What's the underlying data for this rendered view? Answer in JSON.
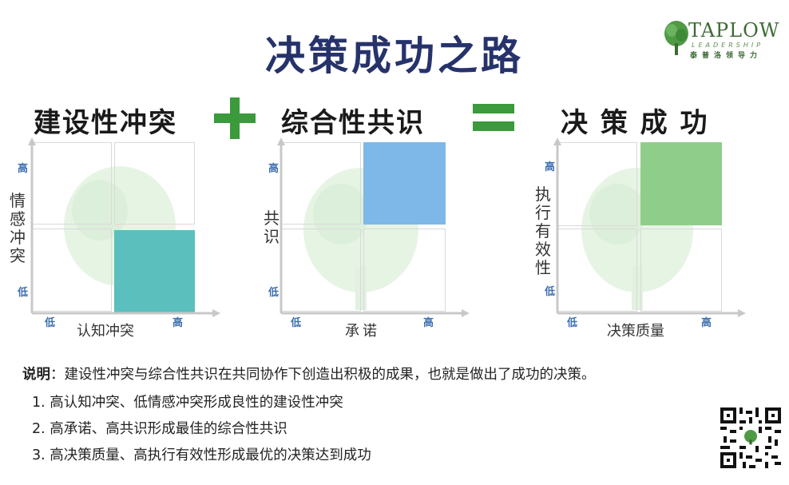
{
  "title": "决策成功之路",
  "logo": {
    "name": "TAPLOW",
    "sub": "LEADERSHIP",
    "cn": "泰普洛领导力"
  },
  "operators": {
    "plus": "+",
    "equals": "="
  },
  "panels": [
    {
      "heading": "建设性冲突",
      "y_label": "情感冲突",
      "x_label": "认知冲突",
      "y_high": "高",
      "y_low": "低",
      "x_low": "低",
      "x_high": "高",
      "highlight": "bottom-right",
      "highlight_color": "#5bbfbe"
    },
    {
      "heading": "综合性共识",
      "y_label": "共识",
      "x_label": "承诺",
      "y_high": "高",
      "y_low": "低",
      "x_low": "低",
      "x_high": "高",
      "highlight": "top-right",
      "highlight_color": "#7db8e8"
    },
    {
      "heading": "决 策 成 功",
      "y_label": "执行有效性",
      "x_label": "决策质量",
      "y_high": "高",
      "y_low": "低",
      "x_low": "低",
      "x_high": "高",
      "highlight": "top-right",
      "highlight_color": "#8fcd8a"
    }
  ],
  "note": {
    "label": "说明",
    "text": "：建设性冲突与综合性共识在共同协作下创造出积极的成果，也就是做出了成功的决策。",
    "items": [
      "1.  高认知冲突、低情感冲突形成良性的建设性冲突",
      "2.  高承诺、高共识形成最佳的综合性共识",
      "3.  高决策质量、高执行有效性形成最优的决策达到成功"
    ]
  }
}
